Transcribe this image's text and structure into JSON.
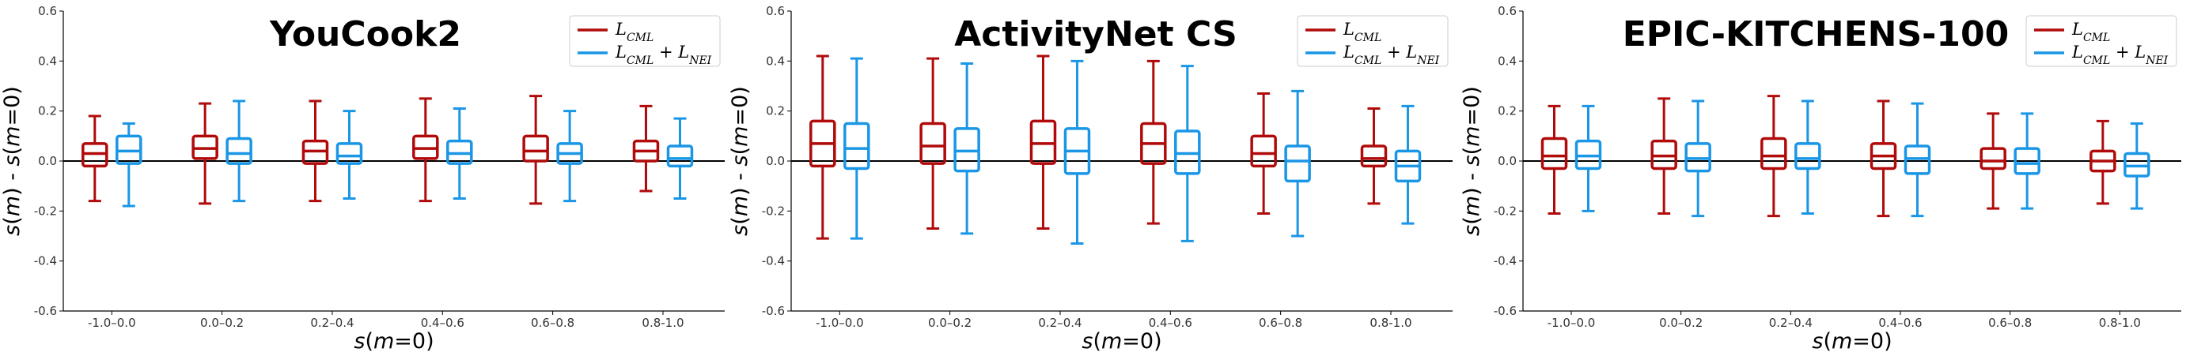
{
  "figure": {
    "background": "#ffffff"
  },
  "chart_data": [
    {
      "type": "box",
      "title": "YouCook2",
      "xlabel": "s(m=0)",
      "ylabel": "s(m) - s(m=0)",
      "ylim": [
        -0.6,
        0.6
      ],
      "yticks": [
        "-0.6",
        "-0.4",
        "-0.2",
        "0.0",
        "0.2",
        "0.4",
        "0.6"
      ],
      "categories": [
        "-1.0–0.0",
        "0.0–0.2",
        "0.2–0.4",
        "0.4–0.6",
        "0.6–0.8",
        "0.8-1.0"
      ],
      "legend": {
        "position": "top-right"
      },
      "series": [
        {
          "name": "L_CML",
          "color": "#b00a0a",
          "boxes": [
            {
              "whislo": -0.16,
              "q1": -0.02,
              "med": 0.03,
              "q3": 0.07,
              "whishi": 0.18
            },
            {
              "whislo": -0.17,
              "q1": 0.01,
              "med": 0.05,
              "q3": 0.1,
              "whishi": 0.23
            },
            {
              "whislo": -0.16,
              "q1": -0.01,
              "med": 0.04,
              "q3": 0.08,
              "whishi": 0.24
            },
            {
              "whislo": -0.16,
              "q1": 0.01,
              "med": 0.05,
              "q3": 0.1,
              "whishi": 0.25
            },
            {
              "whislo": -0.17,
              "q1": 0.0,
              "med": 0.04,
              "q3": 0.1,
              "whishi": 0.26
            },
            {
              "whislo": -0.12,
              "q1": 0.0,
              "med": 0.04,
              "q3": 0.08,
              "whishi": 0.22
            }
          ]
        },
        {
          "name": "L_CML + L_NEI",
          "color": "#1a96e6",
          "boxes": [
            {
              "whislo": -0.18,
              "q1": -0.01,
              "med": 0.04,
              "q3": 0.1,
              "whishi": 0.15
            },
            {
              "whislo": -0.16,
              "q1": -0.01,
              "med": 0.03,
              "q3": 0.09,
              "whishi": 0.24
            },
            {
              "whislo": -0.15,
              "q1": -0.01,
              "med": 0.02,
              "q3": 0.07,
              "whishi": 0.2
            },
            {
              "whislo": -0.15,
              "q1": -0.01,
              "med": 0.03,
              "q3": 0.08,
              "whishi": 0.21
            },
            {
              "whislo": -0.16,
              "q1": -0.01,
              "med": 0.03,
              "q3": 0.07,
              "whishi": 0.2
            },
            {
              "whislo": -0.15,
              "q1": -0.02,
              "med": 0.01,
              "q3": 0.06,
              "whishi": 0.17
            }
          ]
        }
      ]
    },
    {
      "type": "box",
      "title": "ActivityNet CS",
      "xlabel": "s(m=0)",
      "ylabel": "s(m) - s(m=0)",
      "ylim": [
        -0.6,
        0.6
      ],
      "yticks": [
        "-0.6",
        "-0.4",
        "-0.2",
        "0.0",
        "0.2",
        "0.4",
        "0.6"
      ],
      "categories": [
        "-1.0–0.0",
        "0.0–0.2",
        "0.2–0.4",
        "0.4–0.6",
        "0.6–0.8",
        "0.8-1.0"
      ],
      "legend": {
        "position": "top-right"
      },
      "series": [
        {
          "name": "L_CML",
          "color": "#b00a0a",
          "boxes": [
            {
              "whislo": -0.31,
              "q1": -0.02,
              "med": 0.07,
              "q3": 0.16,
              "whishi": 0.42
            },
            {
              "whislo": -0.27,
              "q1": -0.01,
              "med": 0.06,
              "q3": 0.15,
              "whishi": 0.41
            },
            {
              "whislo": -0.27,
              "q1": -0.01,
              "med": 0.07,
              "q3": 0.16,
              "whishi": 0.42
            },
            {
              "whislo": -0.25,
              "q1": -0.01,
              "med": 0.07,
              "q3": 0.15,
              "whishi": 0.4
            },
            {
              "whislo": -0.21,
              "q1": -0.02,
              "med": 0.03,
              "q3": 0.1,
              "whishi": 0.27
            },
            {
              "whislo": -0.17,
              "q1": -0.02,
              "med": 0.01,
              "q3": 0.06,
              "whishi": 0.21
            }
          ]
        },
        {
          "name": "L_CML + L_NEI",
          "color": "#1a96e6",
          "boxes": [
            {
              "whislo": -0.31,
              "q1": -0.03,
              "med": 0.05,
              "q3": 0.15,
              "whishi": 0.41
            },
            {
              "whislo": -0.29,
              "q1": -0.04,
              "med": 0.04,
              "q3": 0.13,
              "whishi": 0.39
            },
            {
              "whislo": -0.33,
              "q1": -0.05,
              "med": 0.04,
              "q3": 0.13,
              "whishi": 0.4
            },
            {
              "whislo": -0.32,
              "q1": -0.05,
              "med": 0.03,
              "q3": 0.12,
              "whishi": 0.38
            },
            {
              "whislo": -0.3,
              "q1": -0.08,
              "med": 0.0,
              "q3": 0.06,
              "whishi": 0.28
            },
            {
              "whislo": -0.25,
              "q1": -0.08,
              "med": -0.02,
              "q3": 0.04,
              "whishi": 0.22
            }
          ]
        }
      ]
    },
    {
      "type": "box",
      "title": "EPIC-KITCHENS-100",
      "xlabel": "s(m=0)",
      "ylabel": "s(m) - s(m=0)",
      "ylim": [
        -0.6,
        0.6
      ],
      "yticks": [
        "-0.6",
        "-0.4",
        "-0.2",
        "0.0",
        "0.2",
        "0.4",
        "0.6"
      ],
      "categories": [
        "-1.0–0.0",
        "0.0–0.2",
        "0.2–0.4",
        "0.4–0.6",
        "0.6–0.8",
        "0.8-1.0"
      ],
      "legend": {
        "position": "top-right"
      },
      "series": [
        {
          "name": "L_CML",
          "color": "#b00a0a",
          "boxes": [
            {
              "whislo": -0.21,
              "q1": -0.03,
              "med": 0.02,
              "q3": 0.09,
              "whishi": 0.22
            },
            {
              "whislo": -0.21,
              "q1": -0.03,
              "med": 0.02,
              "q3": 0.08,
              "whishi": 0.25
            },
            {
              "whislo": -0.22,
              "q1": -0.03,
              "med": 0.02,
              "q3": 0.09,
              "whishi": 0.26
            },
            {
              "whislo": -0.22,
              "q1": -0.03,
              "med": 0.02,
              "q3": 0.07,
              "whishi": 0.24
            },
            {
              "whislo": -0.19,
              "q1": -0.03,
              "med": 0.0,
              "q3": 0.05,
              "whishi": 0.19
            },
            {
              "whislo": -0.17,
              "q1": -0.04,
              "med": 0.0,
              "q3": 0.04,
              "whishi": 0.16
            }
          ]
        },
        {
          "name": "L_CML + L_NEI",
          "color": "#1a96e6",
          "boxes": [
            {
              "whislo": -0.2,
              "q1": -0.03,
              "med": 0.02,
              "q3": 0.08,
              "whishi": 0.22
            },
            {
              "whislo": -0.22,
              "q1": -0.04,
              "med": 0.01,
              "q3": 0.07,
              "whishi": 0.24
            },
            {
              "whislo": -0.21,
              "q1": -0.03,
              "med": 0.01,
              "q3": 0.07,
              "whishi": 0.24
            },
            {
              "whislo": -0.22,
              "q1": -0.05,
              "med": 0.01,
              "q3": 0.06,
              "whishi": 0.23
            },
            {
              "whislo": -0.19,
              "q1": -0.05,
              "med": -0.01,
              "q3": 0.05,
              "whishi": 0.19
            },
            {
              "whislo": -0.19,
              "q1": -0.06,
              "med": -0.02,
              "q3": 0.03,
              "whishi": 0.15
            }
          ]
        }
      ]
    }
  ]
}
